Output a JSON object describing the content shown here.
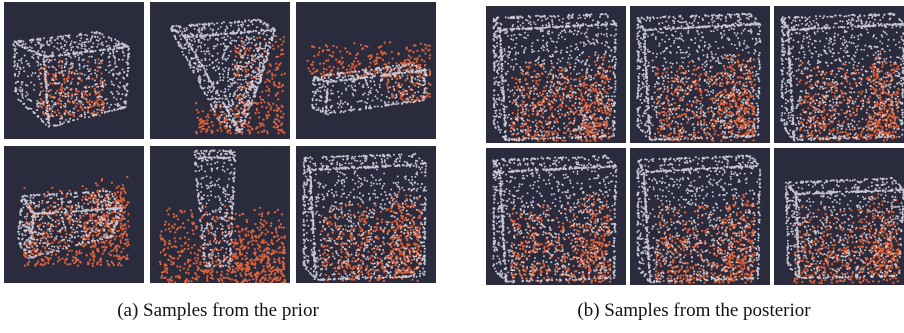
{
  "figure": {
    "panel_background": "#2b2b3e",
    "point_color_box": "#d8d8e4",
    "point_color_scene": "#e0643a",
    "subfigures": [
      {
        "caption": "(a) Samples from the prior",
        "tiles": [
          {
            "shape": "wide-box"
          },
          {
            "shape": "tilted-slab"
          },
          {
            "shape": "floating-bar"
          },
          {
            "shape": "tilted-box"
          },
          {
            "shape": "tall-pillar"
          },
          {
            "shape": "large-cube"
          }
        ]
      },
      {
        "caption": "(b) Samples from the posterior",
        "tiles": [
          {
            "shape": "large-cube"
          },
          {
            "shape": "large-cube"
          },
          {
            "shape": "large-cube"
          },
          {
            "shape": "large-cube"
          },
          {
            "shape": "large-cube"
          },
          {
            "shape": "medium-cube"
          }
        ]
      }
    ]
  }
}
